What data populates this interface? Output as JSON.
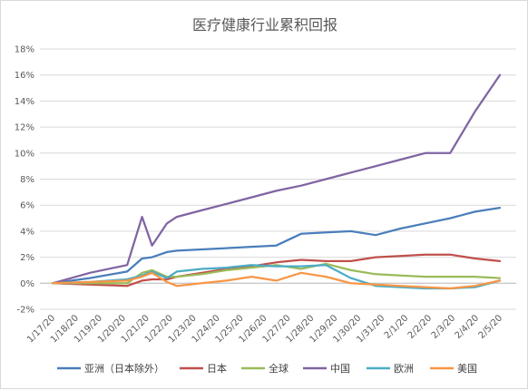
{
  "chart_data": {
    "type": "line",
    "title": "医疗健康行业累积回报",
    "xlabel": "",
    "ylabel": "",
    "ylim": [
      -0.02,
      0.18
    ],
    "yticks": [
      -0.02,
      0.0,
      0.02,
      0.04,
      0.06,
      0.08,
      0.1,
      0.12,
      0.14,
      0.16,
      0.18
    ],
    "ytick_labels": [
      "-2%",
      "0%",
      "2%",
      "4%",
      "6%",
      "8%",
      "10%",
      "12%",
      "14%",
      "16%",
      "18%"
    ],
    "grid": true,
    "legend_position": "bottom",
    "categories": [
      "1/17/20",
      "1/18/20",
      "1/19/20",
      "1/20/20",
      "1/21/20",
      "1/22/20",
      "1/23/20",
      "1/24/20",
      "1/25/20",
      "1/26/20",
      "1/27/20",
      "1/28/20",
      "1/29/20",
      "1/30/20",
      "1/31/20",
      "2/1/20",
      "2/2/20",
      "2/3/20",
      "2/4/20",
      "2/5/20"
    ],
    "point_x": [
      0,
      1.5,
      3,
      3.6,
      4,
      4.6,
      5,
      6,
      7,
      8,
      9,
      10,
      11,
      12,
      13,
      14,
      15,
      16,
      17,
      18
    ],
    "series": [
      {
        "name": "亚洲（日本除外）",
        "color": "#4a7ebb",
        "values": [
          0.0,
          0.004,
          0.009,
          0.019,
          0.02,
          0.024,
          0.025,
          0.026,
          0.027,
          0.028,
          0.029,
          0.038,
          0.039,
          0.04,
          0.037,
          0.042,
          0.046,
          0.05,
          0.055,
          0.058
        ]
      },
      {
        "name": "日本",
        "color": "#c0504d",
        "values": [
          0.0,
          -0.001,
          -0.002,
          0.002,
          0.003,
          0.003,
          0.005,
          0.008,
          0.011,
          0.013,
          0.016,
          0.018,
          0.017,
          0.017,
          0.02,
          0.021,
          0.022,
          0.022,
          0.019,
          0.017
        ]
      },
      {
        "name": "全球",
        "color": "#9bbb59",
        "values": [
          0.0,
          0.0,
          0.0,
          0.008,
          0.01,
          0.005,
          0.005,
          0.007,
          0.01,
          0.012,
          0.014,
          0.011,
          0.015,
          0.01,
          0.007,
          0.006,
          0.005,
          0.005,
          0.005,
          0.004
        ]
      },
      {
        "name": "中国",
        "color": "#8064a2",
        "values": [
          0.0,
          0.008,
          0.014,
          0.051,
          0.029,
          0.046,
          0.051,
          0.056,
          0.061,
          0.066,
          0.071,
          0.075,
          0.08,
          0.085,
          0.09,
          0.095,
          0.1,
          0.1,
          0.132,
          0.16
        ]
      },
      {
        "name": "欧洲",
        "color": "#4bacc6",
        "values": [
          0.0,
          0.001,
          0.003,
          0.006,
          0.009,
          0.004,
          0.009,
          0.011,
          0.012,
          0.014,
          0.013,
          0.013,
          0.014,
          0.004,
          -0.002,
          -0.003,
          -0.004,
          -0.004,
          -0.003,
          0.002
        ]
      },
      {
        "name": "美国",
        "color": "#f79646",
        "values": [
          0.0,
          0.001,
          0.002,
          0.005,
          0.008,
          0.001,
          -0.002,
          0.0,
          0.002,
          0.005,
          0.002,
          0.008,
          0.005,
          0.0,
          -0.001,
          -0.002,
          -0.003,
          -0.004,
          -0.002,
          0.002
        ]
      }
    ]
  }
}
